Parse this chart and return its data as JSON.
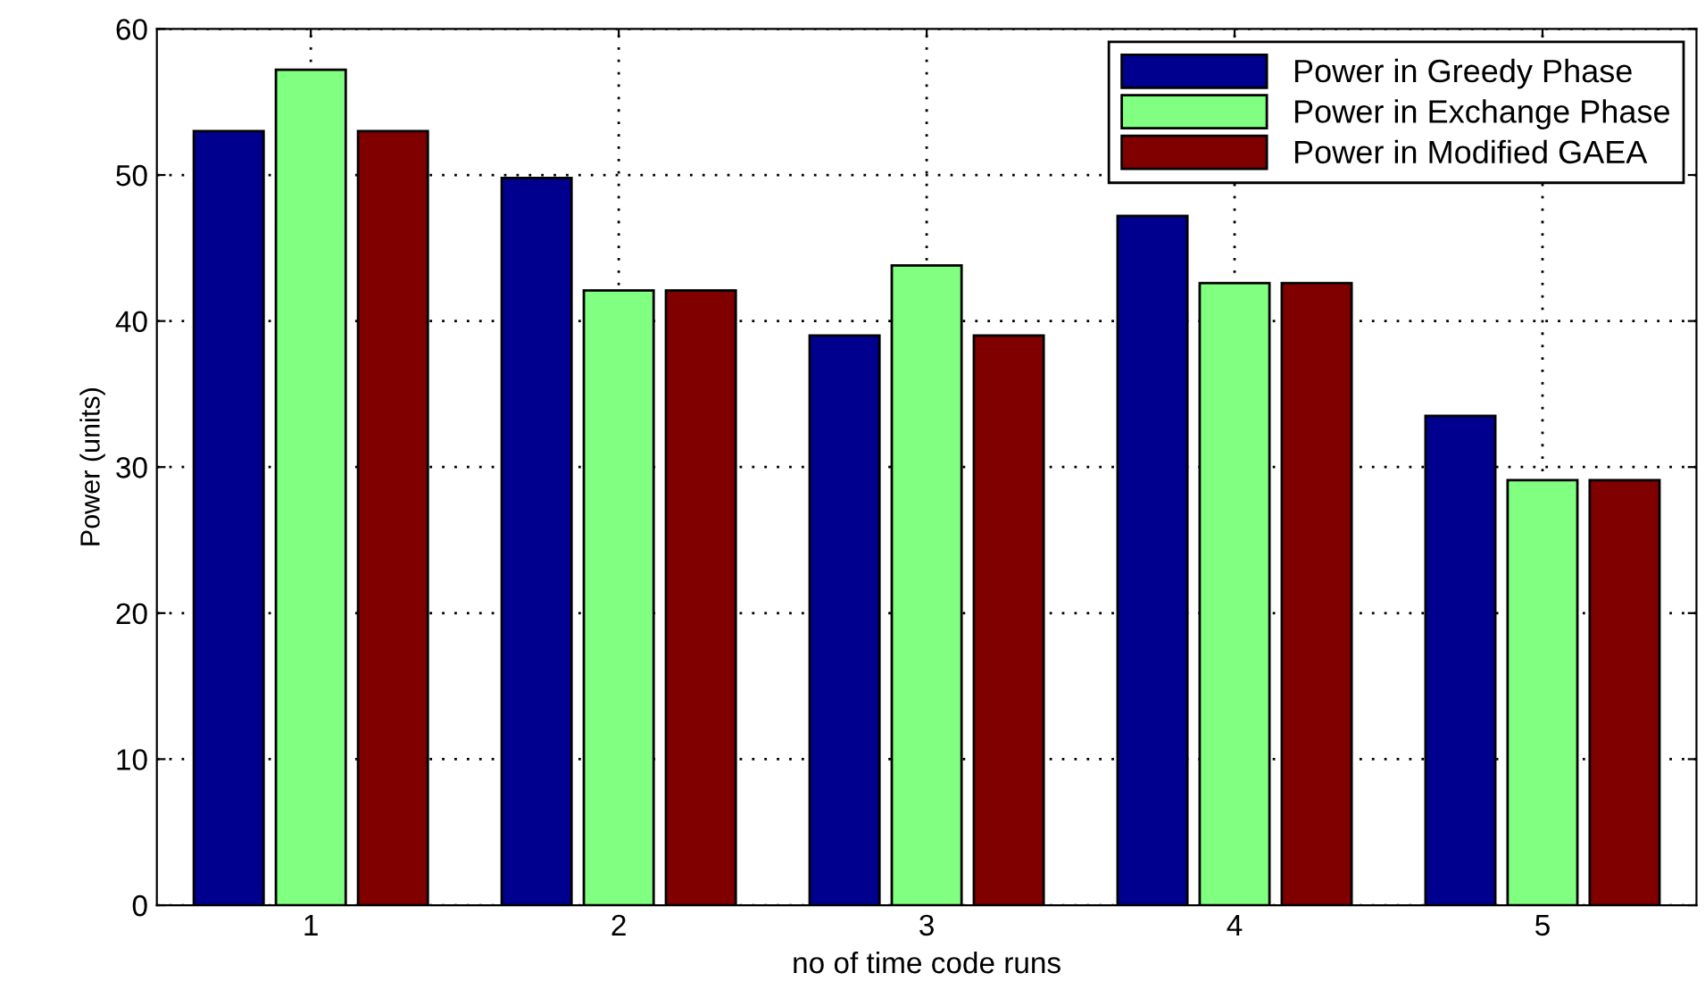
{
  "chart_data": {
    "type": "bar",
    "xlabel": "no of time code runs",
    "ylabel": "Power (units)",
    "categories": [
      "1",
      "2",
      "3",
      "4",
      "5"
    ],
    "series": [
      {
        "name": "Power in Greedy Phase",
        "color": "#00008f",
        "values": [
          53,
          49.8,
          39,
          47.2,
          33.5
        ]
      },
      {
        "name": "Power in Exchange Phase",
        "color": "#80ff80",
        "values": [
          57.2,
          42.1,
          43.8,
          42.6,
          29.1
        ]
      },
      {
        "name": "Power in Modified GAEA",
        "color": "#800000",
        "values": [
          53,
          42.1,
          39,
          42.6,
          29.1
        ]
      }
    ],
    "ylim": [
      0,
      60
    ],
    "yticks": [
      0,
      10,
      20,
      30,
      40,
      50,
      60
    ],
    "grid": true,
    "legend": "top right"
  }
}
